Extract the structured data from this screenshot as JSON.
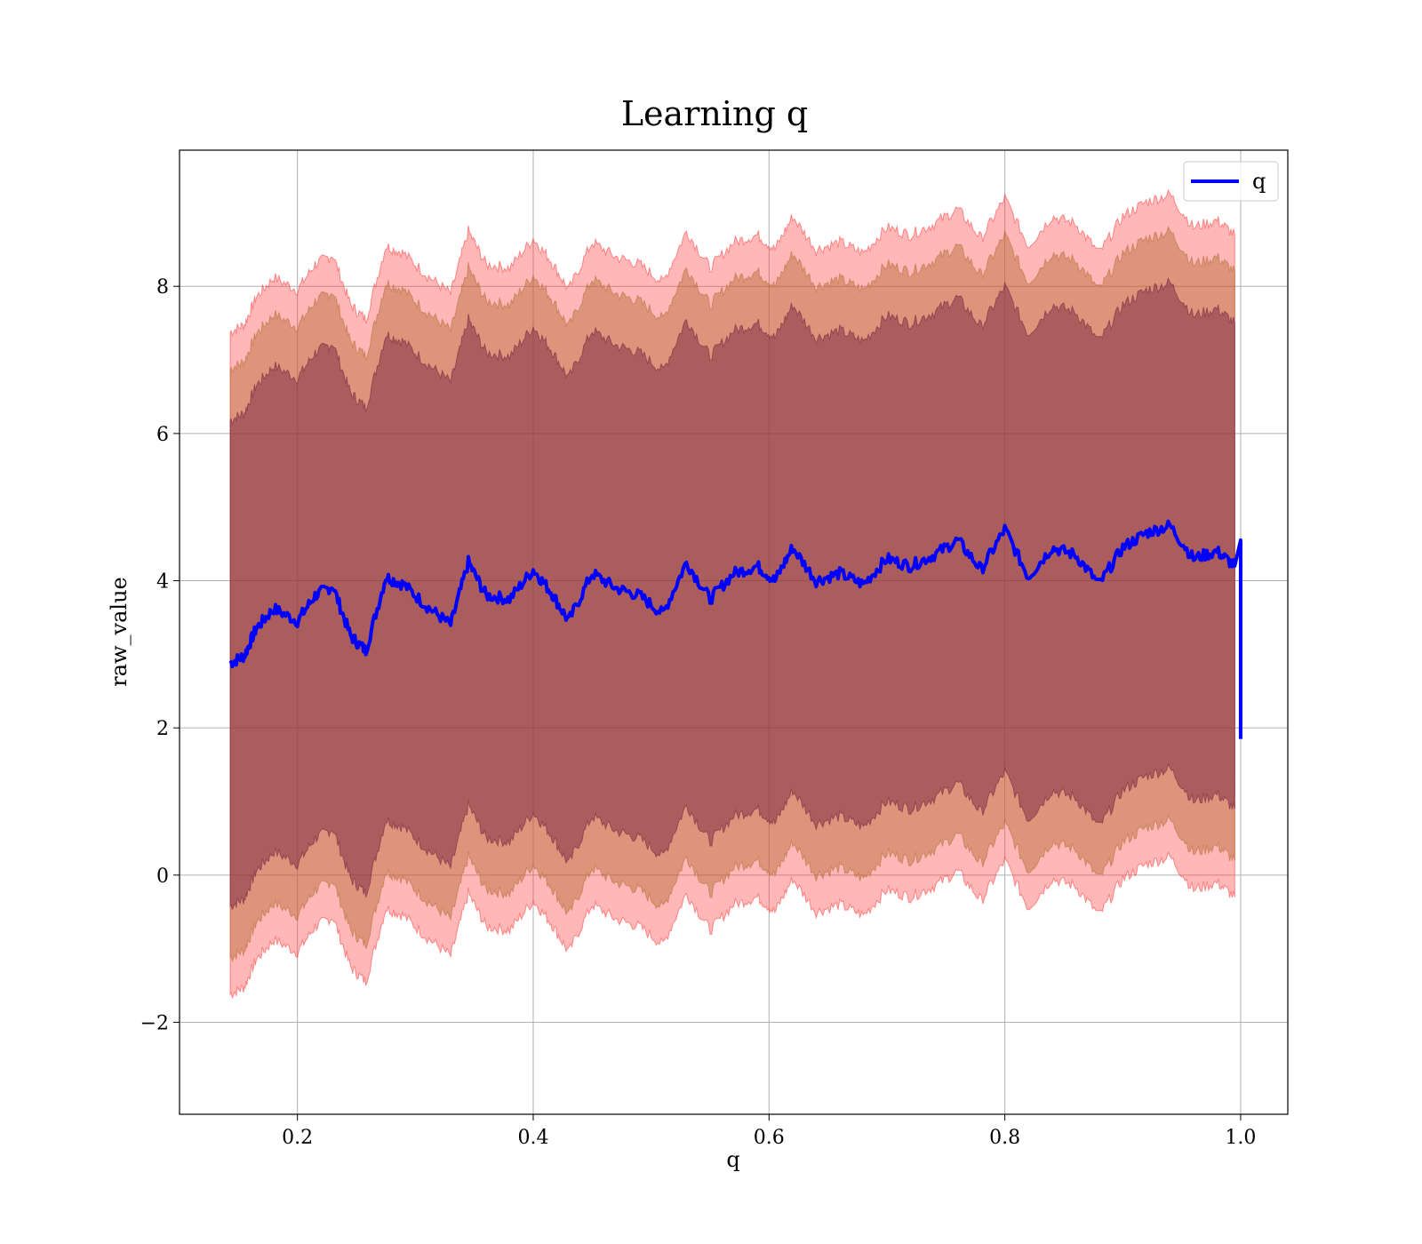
{
  "chart_data": {
    "type": "line",
    "title": "Learning q",
    "xlabel": "q",
    "ylabel": "raw_value",
    "xlim": [
      0.1,
      1.04
    ],
    "ylim": [
      -3.25,
      9.85
    ],
    "xticks": [
      0.2,
      0.4,
      0.6,
      0.8,
      1.0
    ],
    "xtick_labels": [
      "0.2",
      "0.4",
      "0.6",
      "0.8",
      "1.0"
    ],
    "yticks": [
      -2,
      0,
      2,
      4,
      6,
      8
    ],
    "ytick_labels": [
      "−2",
      "0",
      "2",
      "4",
      "6",
      "8"
    ],
    "grid": true,
    "legend_position": "top-right",
    "series": [
      {
        "name": "q",
        "color": "#0000ff",
        "x": [
          0.143,
          0.155,
          0.165,
          0.18,
          0.2,
          0.215,
          0.23,
          0.245,
          0.258,
          0.275,
          0.29,
          0.31,
          0.33,
          0.345,
          0.36,
          0.38,
          0.4,
          0.415,
          0.43,
          0.45,
          0.47,
          0.49,
          0.51,
          0.53,
          0.55,
          0.57,
          0.59,
          0.605,
          0.62,
          0.64,
          0.66,
          0.68,
          0.7,
          0.72,
          0.74,
          0.76,
          0.78,
          0.8,
          0.82,
          0.84,
          0.86,
          0.88,
          0.9,
          0.92,
          0.94,
          0.96,
          0.98,
          0.995,
          1.0
        ],
        "y": [
          2.88,
          2.98,
          3.35,
          3.62,
          3.45,
          3.8,
          3.93,
          3.25,
          3.05,
          4.05,
          3.95,
          3.65,
          3.4,
          4.25,
          3.8,
          3.75,
          4.15,
          3.85,
          3.45,
          4.1,
          3.9,
          3.8,
          3.55,
          4.25,
          3.75,
          4.1,
          4.2,
          4.0,
          4.45,
          4.0,
          4.1,
          3.95,
          4.3,
          4.2,
          4.35,
          4.55,
          4.15,
          4.7,
          4.05,
          4.45,
          4.35,
          3.95,
          4.45,
          4.65,
          4.75,
          4.3,
          4.4,
          4.2,
          1.85
        ],
        "band_offsets": [
          3.3,
          4.0,
          4.5
        ],
        "band_colors": [
          "#6e1a3c",
          "#b26a32",
          "#ff3030"
        ]
      }
    ]
  }
}
